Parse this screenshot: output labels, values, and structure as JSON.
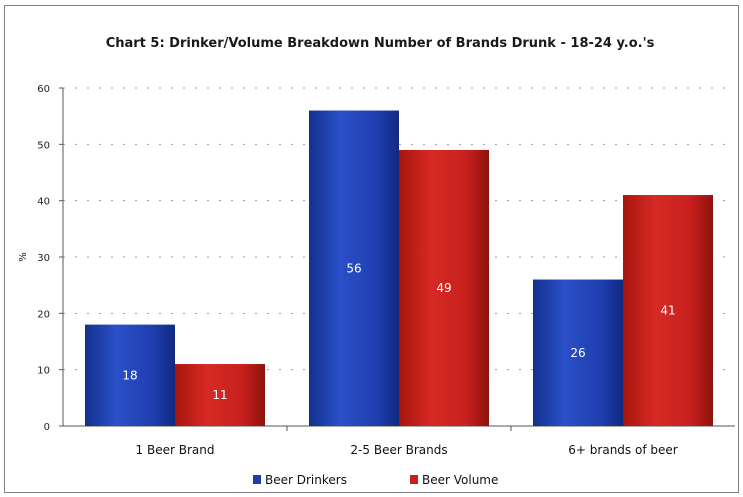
{
  "chart_data": {
    "type": "bar",
    "title": "Chart 5: Drinker/Volume Breakdown Number of Brands Drunk - 18-24 y.o.'s",
    "xlabel": "",
    "ylabel": "%",
    "ylim": [
      0,
      60
    ],
    "yticks": [
      0,
      10,
      20,
      30,
      40,
      50,
      60
    ],
    "categories": [
      "1 Beer Brand",
      "2-5 Beer Brands",
      "6+ brands of beer"
    ],
    "series": [
      {
        "name": "Beer Drinkers",
        "values": [
          18,
          56,
          26
        ],
        "color": "#1f3fb0"
      },
      {
        "name": "Beer Volume",
        "values": [
          11,
          49,
          41
        ],
        "color": "#c8201e"
      }
    ],
    "grid": "dashed-horizontal",
    "legend": "bottom-center"
  }
}
